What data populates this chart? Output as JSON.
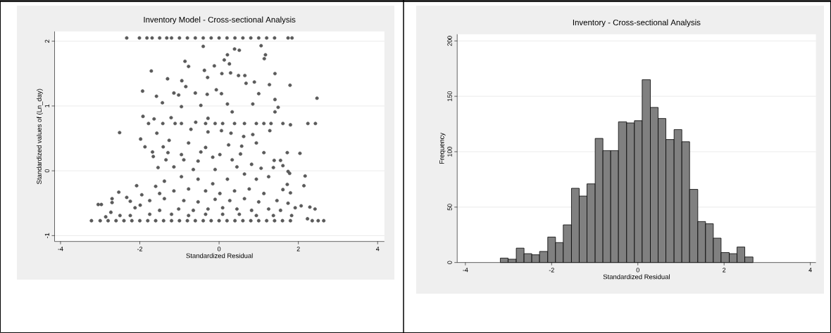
{
  "chart_data": [
    {
      "type": "scatter",
      "title": "Inventory Model - Cross-sectional Analysis",
      "xlabel": "Standardized Residual",
      "ylabel": "Standardized values of (Ln_day)",
      "xlim": [
        -4.15,
        4.17
      ],
      "ylim": [
        -1.09,
        2.15
      ],
      "xticks": [
        -4,
        -2,
        0,
        2,
        4
      ],
      "yticks": [
        -1,
        0,
        1,
        2
      ],
      "grid": "y",
      "marker": "circle",
      "series": [
        {
          "color": "#5a5a5a",
          "x": [
            -2.33,
            -2.01,
            -1.82,
            -1.69,
            -1.5,
            -1.32,
            -1.2,
            -1.0,
            -0.8,
            -0.6,
            -0.4,
            -0.2,
            0,
            0.2,
            0.4,
            0.6,
            0.8,
            1.0,
            1.2,
            1.4,
            1.74,
            1.84,
            -0.4,
            0.21,
            0.39,
            0.51,
            1.06,
            1.17,
            1.14,
            -0.86,
            -0.77,
            -1.71,
            -0.12,
            -0.37,
            -0.29,
            0.13,
            0.26,
            0.07,
            0.29,
            0.49,
            0.65,
            1.41,
            -1.3,
            -0.94,
            -0.84,
            0.89,
            1.27,
            1.79,
            0.68,
            -1.93,
            -1.14,
            -0.6,
            -0.07,
            0.06,
            1.0,
            2.47,
            -1.58,
            -1.02,
            -0.3,
            1.41,
            -1.43,
            -0.95,
            -0.46,
            0.21,
            0.85,
            1.49,
            -1.92,
            -1.64,
            -1.21,
            -0.28,
            0.33,
            1.41,
            -1.78,
            -1.42,
            -1.11,
            -0.95,
            -0.59,
            -0.34,
            -0.1,
            0.09,
            0.39,
            0.64,
            0.94,
            1.13,
            1.31,
            1.61,
            1.8,
            2.24,
            2.43,
            -2.51,
            -1.98,
            -1.57,
            -1.26,
            -0.71,
            -0.28,
            0.06,
            0.3,
            0.62,
            0.85,
            1.28,
            -1.87,
            -1.41,
            -0.77,
            -0.34,
            0.24,
            0.57,
            0.94,
            -1.68,
            -1.29,
            -0.95,
            -0.46,
            0.02,
            0.54,
            1.13,
            1.72,
            2.04,
            -1.66,
            -1.34,
            -0.89,
            -0.53,
            -0.16,
            0.33,
            0.82,
            1.39,
            1.55,
            -1.54,
            -1.14,
            -0.65,
            -0.1,
            0.45,
            1.06,
            1.37,
            1.61,
            1.74,
            1.78,
            2.17,
            2.14,
            -2.08,
            -1.6,
            -1.38,
            -0.95,
            -0.53,
            -0.16,
            0.21,
            0.64,
            0.94,
            1.25,
            1.72,
            -2.53,
            -1.95,
            -1.5,
            -1.14,
            -0.77,
            -0.34,
            0.02,
            0.39,
            0.76,
            1.13,
            1.61,
            1.8,
            -2.33,
            -2.7,
            -2.24,
            -2.7,
            -1.75,
            -1.38,
            -0.89,
            -0.53,
            -0.1,
            0.27,
            0.64,
            1.0,
            1.46,
            1.74,
            -3.05,
            -2.97,
            -1.99,
            -2.12,
            2.07,
            2.29,
            2.42,
            1.92,
            -2.73,
            -1.5,
            -1.02,
            -0.65,
            -0.28,
            0.09,
            0.45,
            0.82,
            1.25,
            1.55,
            -2.5,
            -2.86,
            -2.24,
            -1.75,
            -1.2,
            -0.77,
            -0.34,
            0.09,
            0.51,
            0.94,
            1.37,
            1.83,
            2.23,
            -3.22,
            -3.0,
            -2.8,
            -2.6,
            -2.4,
            -2.2,
            -2.0,
            -1.8,
            -1.6,
            -1.4,
            -1.2,
            -1.0,
            -0.8,
            -0.6,
            -0.4,
            -0.2,
            0,
            0.2,
            0.4,
            0.6,
            0.8,
            1.0,
            1.2,
            1.4,
            1.6,
            1.8,
            2.35,
            2.5,
            2.64
          ],
          "values": [
            2.05,
            2.05,
            2.05,
            2.05,
            2.05,
            2.05,
            2.05,
            2.05,
            2.05,
            2.05,
            2.05,
            2.05,
            2.05,
            2.05,
            2.05,
            2.05,
            2.05,
            2.05,
            2.05,
            2.05,
            2.05,
            2.05,
            1.92,
            1.79,
            1.88,
            1.86,
            1.93,
            1.79,
            1.73,
            1.69,
            1.61,
            1.54,
            1.62,
            1.55,
            1.44,
            1.71,
            1.65,
            1.5,
            1.51,
            1.47,
            1.47,
            1.5,
            1.42,
            1.39,
            1.3,
            1.37,
            1.33,
            1.32,
            1.35,
            1.23,
            1.2,
            1.2,
            1.25,
            1.19,
            1.19,
            1.12,
            1.15,
            1.17,
            1.18,
            1.1,
            1.05,
            0.99,
            1.01,
            1.03,
            1.03,
            0.98,
            0.84,
            0.8,
            0.82,
            0.81,
            0.91,
            0.91,
            0.73,
            0.73,
            0.73,
            0.73,
            0.75,
            0.73,
            0.73,
            0.73,
            0.73,
            0.73,
            0.73,
            0.73,
            0.73,
            0.73,
            0.71,
            0.73,
            0.73,
            0.59,
            0.49,
            0.58,
            0.47,
            0.64,
            0.6,
            0.62,
            0.58,
            0.53,
            0.56,
            0.62,
            0.37,
            0.37,
            0.43,
            0.36,
            0.4,
            0.38,
            0.43,
            0.29,
            0.28,
            0.25,
            0.29,
            0.25,
            0.26,
            0.28,
            0.28,
            0.27,
            0.22,
            0.17,
            0.17,
            0.15,
            0.21,
            0.17,
            0.1,
            0.16,
            0.16,
            0.05,
            0.06,
            0.02,
            0.02,
            0.06,
            0.04,
            0.05,
            0.08,
            -0.01,
            -0.04,
            -0.08,
            -0.23,
            -0.23,
            -0.24,
            -0.16,
            -0.09,
            -0.13,
            -0.2,
            -0.13,
            -0.05,
            -0.13,
            -0.09,
            -0.21,
            -0.33,
            -0.37,
            -0.35,
            -0.31,
            -0.28,
            -0.31,
            -0.35,
            -0.31,
            -0.28,
            -0.35,
            -0.29,
            -0.34,
            -0.41,
            -0.43,
            -0.47,
            -0.49,
            -0.46,
            -0.43,
            -0.46,
            -0.48,
            -0.44,
            -0.46,
            -0.43,
            -0.48,
            -0.46,
            -0.5,
            -0.52,
            -0.52,
            -0.53,
            -0.57,
            -0.54,
            -0.56,
            -0.59,
            -0.57,
            -0.64,
            -0.61,
            -0.59,
            -0.61,
            -0.59,
            -0.57,
            -0.59,
            -0.61,
            -0.59,
            -0.61,
            -0.69,
            -0.71,
            -0.69,
            -0.67,
            -0.67,
            -0.69,
            -0.67,
            -0.67,
            -0.67,
            -0.69,
            -0.69,
            -0.69,
            -0.74,
            -0.77,
            -0.77,
            -0.77,
            -0.77,
            -0.77,
            -0.77,
            -0.77,
            -0.77,
            -0.77,
            -0.77,
            -0.77,
            -0.77,
            -0.77,
            -0.77,
            -0.77,
            -0.77,
            -0.77,
            -0.77,
            -0.77,
            -0.77,
            -0.77,
            -0.77,
            -0.77,
            -0.77,
            -0.77,
            -0.77,
            -0.77,
            -0.77,
            -0.77
          ]
        }
      ]
    },
    {
      "type": "histogram",
      "title": "Inventory - Cross-sectional Analysis",
      "xlabel": "Standardized Residual",
      "ylabel": "Frequency",
      "xlim": [
        -4.19,
        4.13
      ],
      "ylim": [
        0,
        206
      ],
      "xticks": [
        -4,
        -2,
        0,
        2,
        4
      ],
      "yticks": [
        0,
        50,
        100,
        150,
        200
      ],
      "grid": "y",
      "color": "#808080",
      "bins": [
        -3.19,
        -3.01,
        -2.82,
        -2.64,
        -2.46,
        -2.28,
        -2.09,
        -1.91,
        -1.73,
        -1.54,
        -1.36,
        -1.18,
        -0.99,
        -0.81,
        -0.63,
        -0.45,
        -0.26,
        -0.08,
        0.1,
        0.29,
        0.47,
        0.65,
        0.84,
        1.02,
        1.2,
        1.39,
        1.57,
        1.75,
        1.93,
        2.12,
        2.3,
        2.48,
        2.67
      ],
      "values": [
        4,
        3,
        13,
        8,
        7,
        10,
        23,
        18,
        34,
        67,
        60,
        71,
        112,
        101,
        101,
        127,
        126,
        128,
        165,
        140,
        130,
        111,
        120,
        109,
        66,
        37,
        35,
        22,
        9,
        8,
        14,
        5
      ]
    }
  ]
}
